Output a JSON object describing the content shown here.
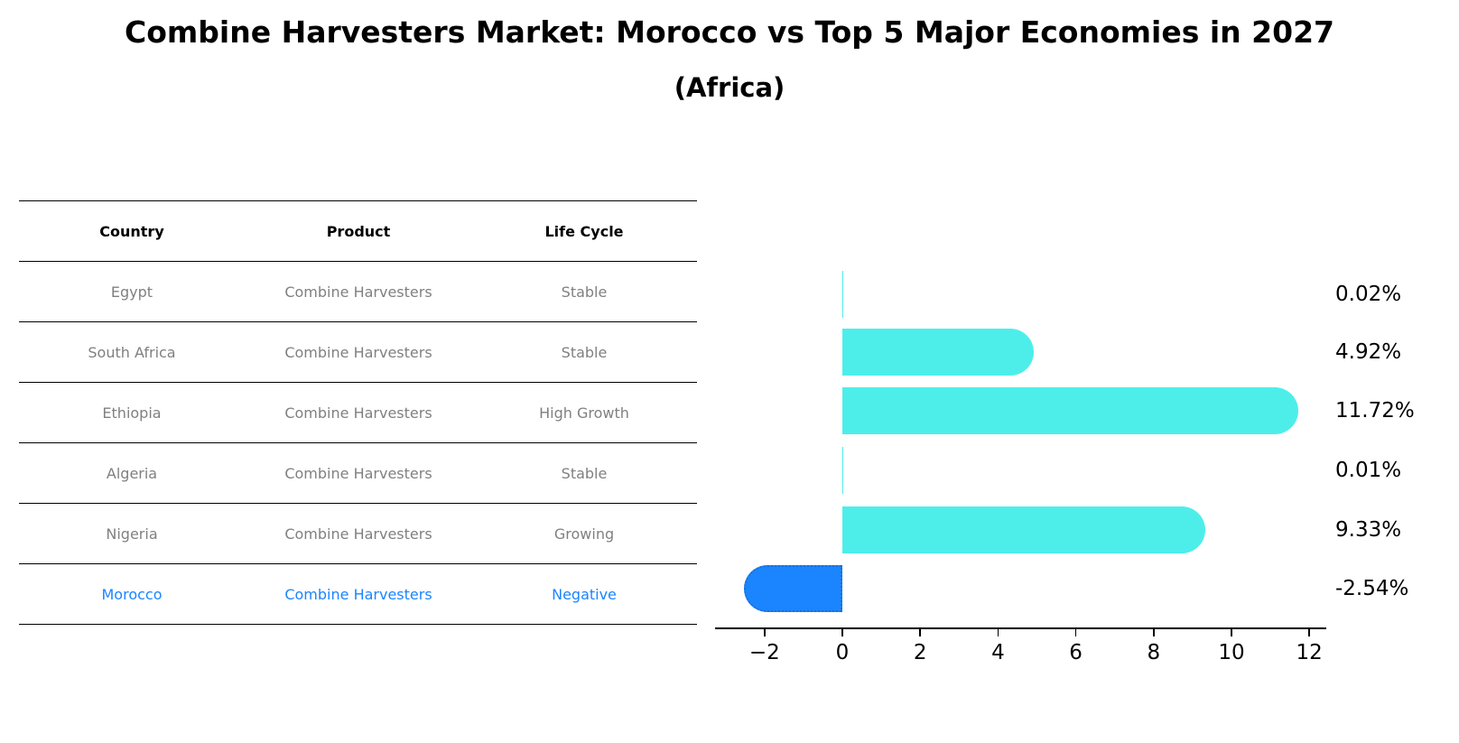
{
  "header": {
    "title": "Combine Harvesters Market: Morocco vs Top 5 Major Economies in 2027",
    "subtitle": "(Africa)"
  },
  "table": {
    "columns": [
      "Country",
      "Product",
      "Life Cycle"
    ],
    "rows": [
      {
        "country": "Egypt",
        "product": "Combine Harvesters",
        "life_cycle": "Stable",
        "highlight": false
      },
      {
        "country": "South Africa",
        "product": "Combine Harvesters",
        "life_cycle": "Stable",
        "highlight": false
      },
      {
        "country": "Ethiopia",
        "product": "Combine Harvesters",
        "life_cycle": "High Growth",
        "highlight": false
      },
      {
        "country": "Algeria",
        "product": "Combine Harvesters",
        "life_cycle": "Stable",
        "highlight": false
      },
      {
        "country": "Nigeria",
        "product": "Combine Harvesters",
        "life_cycle": "Growing",
        "highlight": false
      },
      {
        "country": "Morocco",
        "product": "Combine Harvesters",
        "life_cycle": "Negative",
        "highlight": true
      }
    ]
  },
  "colors": {
    "positive_bar": "#4deeea",
    "negative_bar": "#1a85ff",
    "highlight_text": "#1a85ff",
    "muted_text": "#808080"
  },
  "chart_data": {
    "type": "bar",
    "orientation": "horizontal",
    "title": "Combine Harvesters Market: Morocco vs Top 5 Major Economies in 2027",
    "subtitle": "(Africa)",
    "categories": [
      "Egypt",
      "South Africa",
      "Ethiopia",
      "Algeria",
      "Nigeria",
      "Morocco"
    ],
    "values": [
      0.02,
      4.92,
      11.72,
      0.01,
      9.33,
      -2.54
    ],
    "value_labels": [
      "0.02%",
      "4.92%",
      "11.72%",
      "0.01%",
      "9.33%",
      "-2.54%"
    ],
    "xlabel": "",
    "ylabel": "",
    "xlim": [
      -3.2,
      12.5
    ],
    "xticks": [
      -2,
      0,
      2,
      4,
      6,
      8,
      10,
      12
    ],
    "xtick_labels": [
      "−2",
      "0",
      "2",
      "4",
      "6",
      "8",
      "10",
      "12"
    ],
    "grid": false,
    "legend": null
  }
}
